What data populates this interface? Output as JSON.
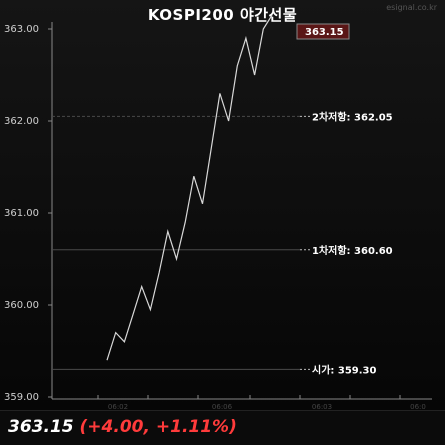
{
  "header": {
    "title": "KOSPI200 야간선물",
    "watermark": "esignal.co.kr"
  },
  "chart_data": {
    "type": "line",
    "ylim": [
      359.0,
      363.0
    ],
    "y_ticks": [
      "363.00",
      "362.00",
      "361.00",
      "360.00",
      "359.00"
    ],
    "x_ticks": [
      "06:02",
      "06:06",
      "06:03",
      "06:0"
    ],
    "values": [
      359.4,
      359.7,
      359.6,
      359.9,
      360.2,
      359.95,
      360.35,
      360.8,
      360.5,
      360.9,
      361.4,
      361.1,
      361.7,
      362.3,
      362.0,
      362.6,
      362.9,
      362.5,
      363.0,
      363.15
    ],
    "reference_lines": [
      {
        "label": "2차저항: 362.05",
        "value": 362.05,
        "style": "dashed"
      },
      {
        "label": "1차저항: 360.60",
        "value": 360.6,
        "style": "solid"
      },
      {
        "label": "시가: 359.30",
        "value": 359.3,
        "style": "solid"
      }
    ],
    "current": {
      "label": "363.15",
      "value": 363.15
    },
    "colors": {
      "line": "#d8d8d8",
      "grid": "#4a4a4a",
      "text": "#cfcfcf",
      "current_box": "#5a1616"
    }
  },
  "footer": {
    "price": "363.15",
    "change": "(+4.00, +1.11%)"
  }
}
